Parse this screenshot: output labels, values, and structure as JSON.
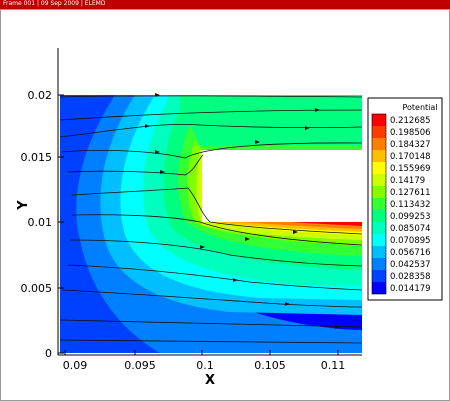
{
  "header": {
    "title": "Frame 001 | 09 Sep 2009 | ELEMD"
  },
  "plot": {
    "xlabel": "X",
    "ylabel": "Y",
    "x_ticks": [
      "0.09",
      "0.095",
      "0.1",
      "0.105",
      "0.11"
    ],
    "y_ticks": [
      "0",
      "0.005",
      "0.01",
      "0.015",
      "0.02"
    ]
  },
  "legend": {
    "title": "Potential",
    "levels": [
      "0.212685",
      "0.198506",
      "0.184327",
      "0.170148",
      "0.155969",
      "0.14179",
      "0.127611",
      "0.113432",
      "0.099253",
      "0.085074",
      "0.070895",
      "0.056716",
      "0.042537",
      "0.028358",
      "0.014179"
    ],
    "colors": [
      "#ff0000",
      "#ff3c00",
      "#ff8000",
      "#ffbf00",
      "#ffff00",
      "#ccff00",
      "#80ff00",
      "#33ff33",
      "#00ff80",
      "#00ffbf",
      "#00ffff",
      "#00bfff",
      "#0080ff",
      "#0040ff",
      "#0000ff"
    ]
  }
}
